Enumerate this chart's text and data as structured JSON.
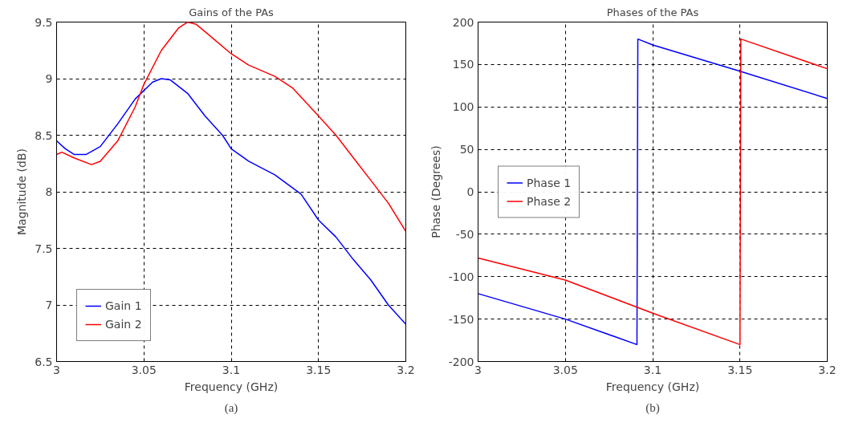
{
  "chart_data": [
    {
      "type": "line",
      "title": "Gains of the PAs",
      "xlabel": "Frequency (GHz)",
      "ylabel": "Magnitude (dB)",
      "annotations": [
        "(a)"
      ],
      "xlim": [
        3,
        3.2
      ],
      "ylim": [
        6.5,
        9.5
      ],
      "xticks": [
        3,
        3.05,
        3.1,
        3.15,
        3.2
      ],
      "yticks": [
        6.5,
        7,
        7.5,
        8,
        8.5,
        9,
        9.5
      ],
      "grid": true,
      "legend": "bottom left",
      "line_style": "solid",
      "marker": "none",
      "series": [
        {
          "name": "Gain 1",
          "color": "#0000ff",
          "x": [
            3.0,
            3.005,
            3.01,
            3.017,
            3.025,
            3.035,
            3.045,
            3.055,
            3.06,
            3.065,
            3.075,
            3.085,
            3.095,
            3.1,
            3.11,
            3.125,
            3.14,
            3.15,
            3.16,
            3.17,
            3.18,
            3.19,
            3.2
          ],
          "values": [
            8.45,
            8.38,
            8.33,
            8.33,
            8.4,
            8.6,
            8.82,
            8.97,
            9.0,
            8.99,
            8.87,
            8.67,
            8.5,
            8.38,
            8.27,
            8.15,
            7.98,
            7.75,
            7.6,
            7.4,
            7.22,
            7.0,
            6.83
          ]
        },
        {
          "name": "Gain 2",
          "color": "#ff0000",
          "x": [
            3.0,
            3.003,
            3.01,
            3.02,
            3.025,
            3.035,
            3.045,
            3.05,
            3.06,
            3.07,
            3.075,
            3.08,
            3.09,
            3.1,
            3.11,
            3.125,
            3.135,
            3.15,
            3.16,
            3.17,
            3.18,
            3.19,
            3.2
          ],
          "values": [
            8.33,
            8.35,
            8.3,
            8.24,
            8.27,
            8.45,
            8.75,
            8.95,
            9.25,
            9.45,
            9.5,
            9.48,
            9.35,
            9.22,
            9.12,
            9.02,
            8.92,
            8.67,
            8.5,
            8.3,
            8.1,
            7.9,
            7.65
          ]
        }
      ]
    },
    {
      "type": "line",
      "title": "Phases of the PAs",
      "xlabel": "Frequency (GHz)",
      "ylabel": "Phase (Degrees)",
      "annotations": [
        "(b)"
      ],
      "xlim": [
        3,
        3.2
      ],
      "ylim": [
        -200,
        200
      ],
      "xticks": [
        3,
        3.05,
        3.1,
        3.15,
        3.2
      ],
      "yticks": [
        -200,
        -150,
        -100,
        -50,
        0,
        50,
        100,
        150,
        200
      ],
      "grid": true,
      "legend": "left",
      "line_style": "solid",
      "marker": "none",
      "series": [
        {
          "name": "Phase 1",
          "color": "#0000ff",
          "x": [
            3.0,
            3.05,
            3.091,
            3.0915,
            3.1,
            3.15,
            3.2
          ],
          "values": [
            -120,
            -150,
            -180,
            180,
            173,
            142,
            110
          ]
        },
        {
          "name": "Phase 2",
          "color": "#ff0000",
          "x": [
            3.0,
            3.05,
            3.1,
            3.15,
            3.1505,
            3.2
          ],
          "values": [
            -78,
            -104,
            -143,
            -180,
            180,
            145
          ]
        }
      ]
    }
  ]
}
